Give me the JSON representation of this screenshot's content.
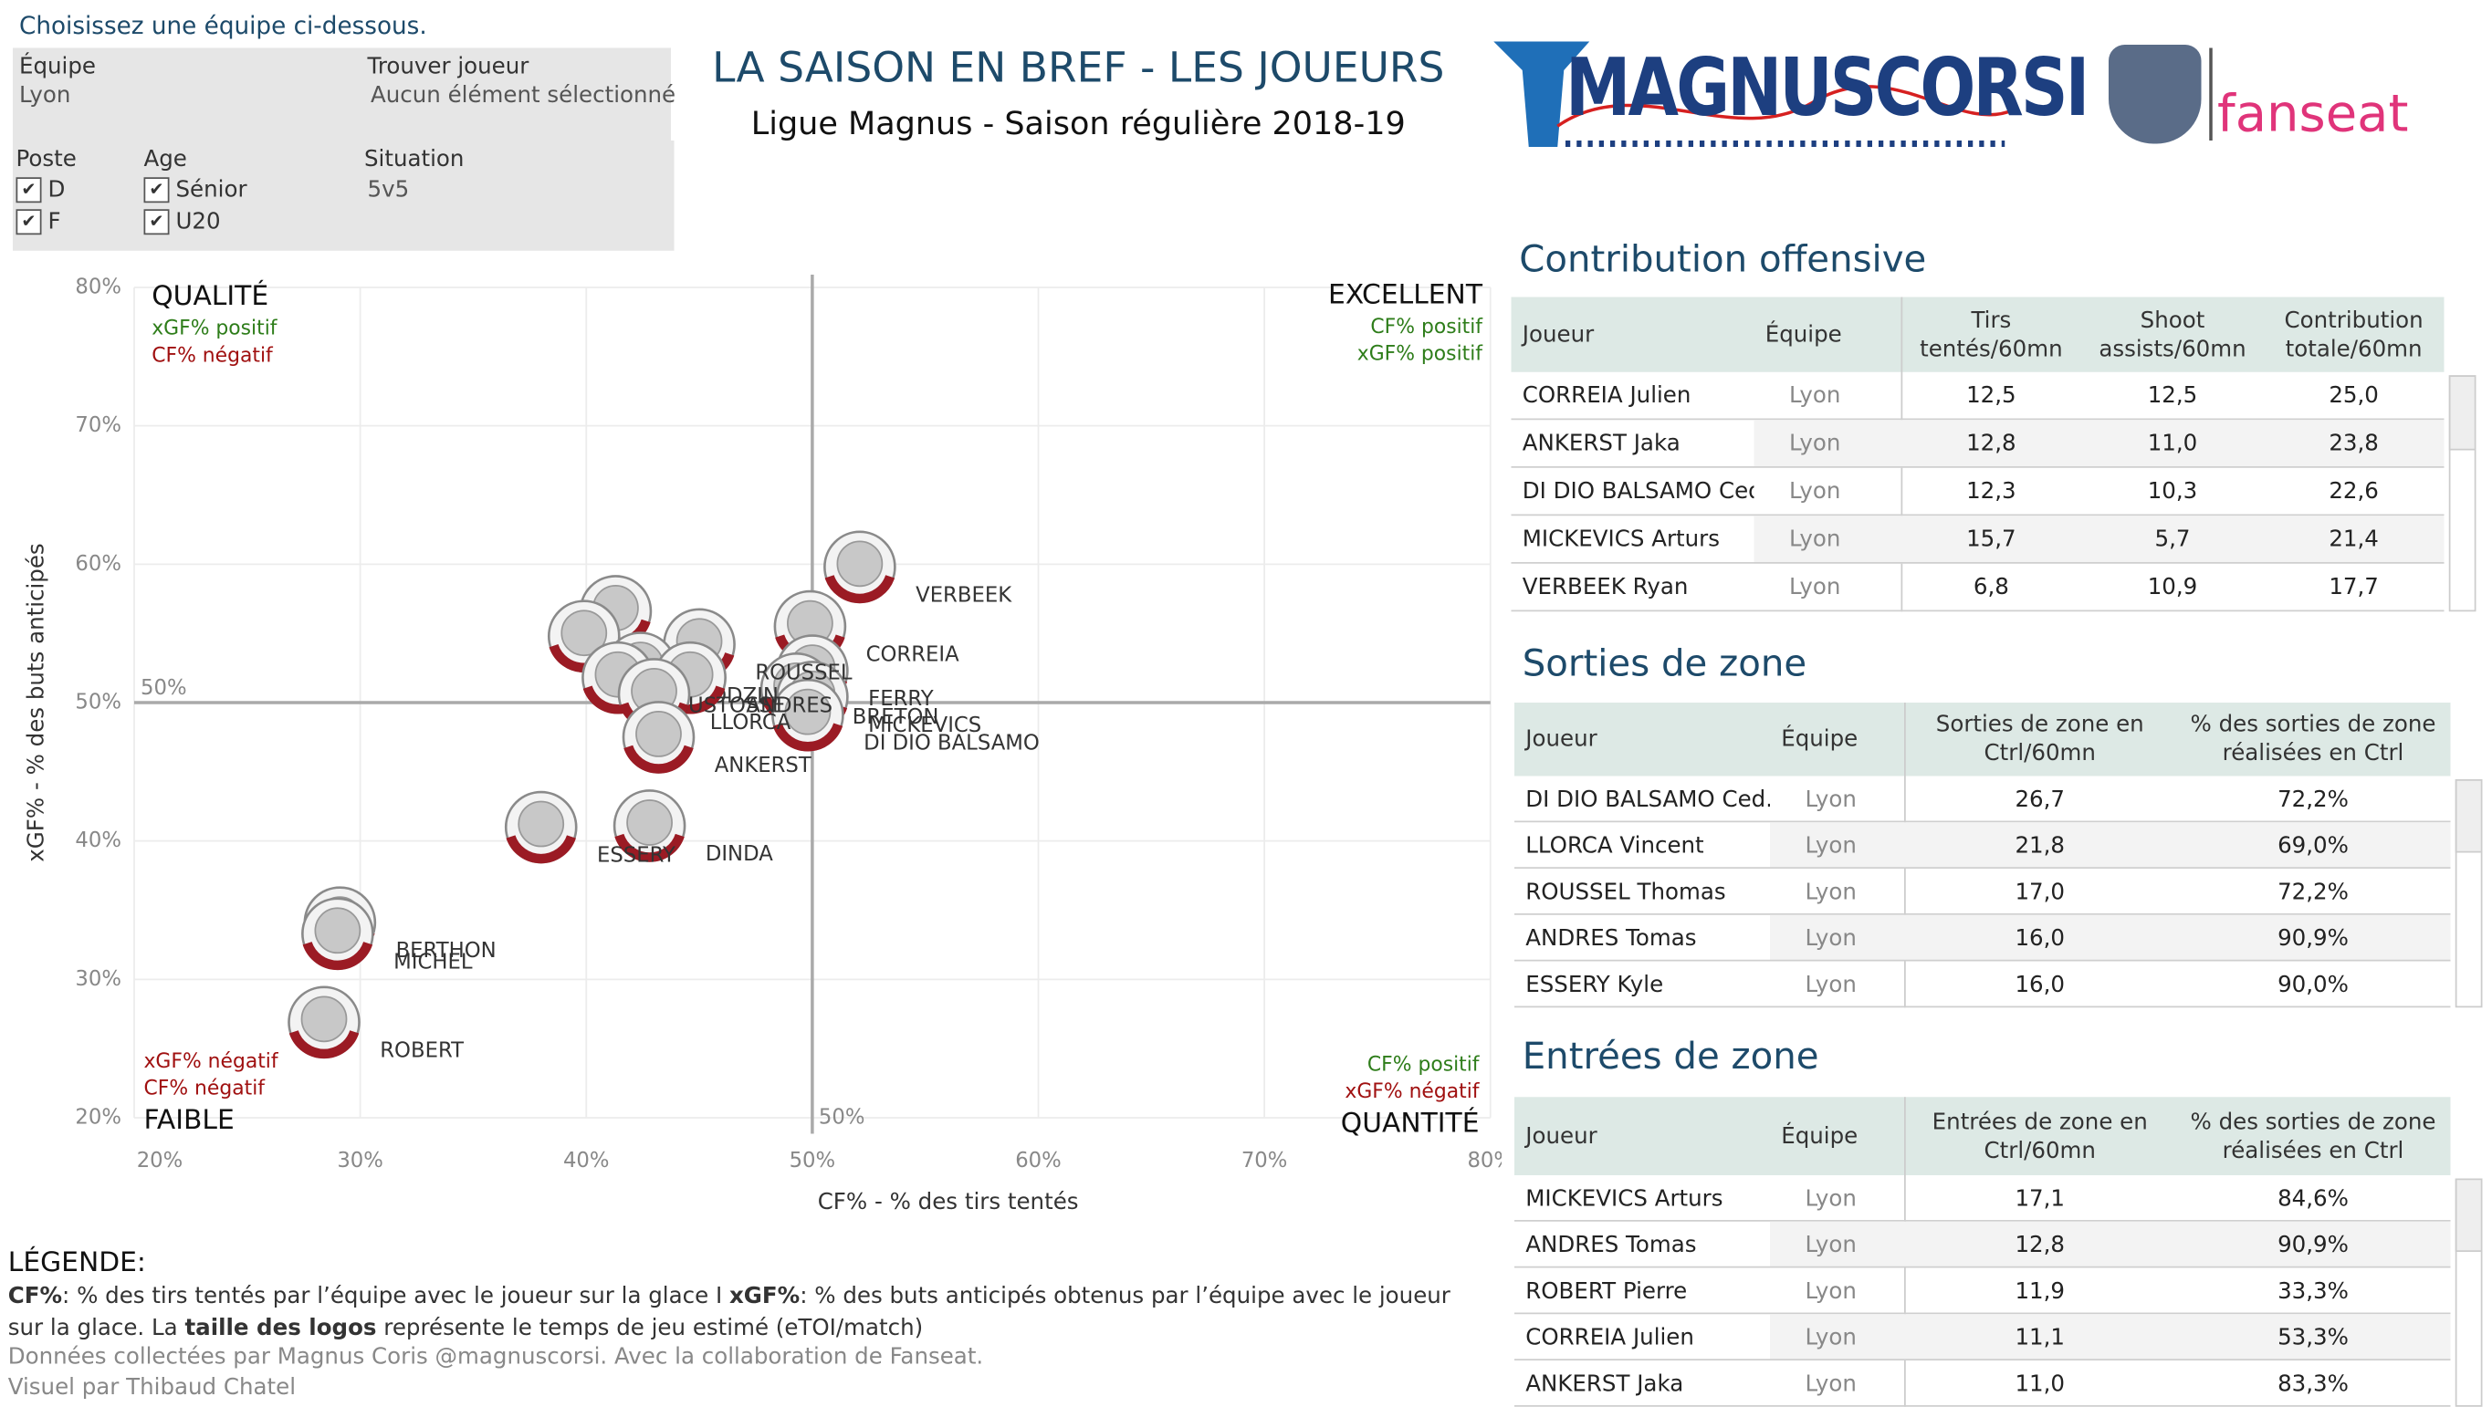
{
  "filters": {
    "prompt": "Choisissez une équipe ci-dessous.",
    "team_label": "Équipe",
    "team": "Lyon",
    "find_label": "Trouver joueur",
    "find_value": "Aucun élément sélectionné",
    "position_label": "Poste",
    "positions": [
      "D",
      "F"
    ],
    "age_label": "Age",
    "ages": [
      "Sénior",
      "U20"
    ],
    "situation_label": "Situation",
    "situation": "5v5"
  },
  "header": {
    "title": "LA SAISON EN BREF - LES JOUEURS",
    "subtitle": "Ligue Magnus - Saison régulière 2018-19",
    "logos": [
      "MAGNUSCORSI",
      "fanseat"
    ]
  },
  "chart_data": {
    "type": "scatter",
    "x_label": "CF% - % des tirs tentés",
    "y_label": "xGF% - % des buts anticipés",
    "xlim": [
      20,
      80
    ],
    "ylim": [
      20,
      80
    ],
    "xticks": [
      {
        "value": 20,
        "label": "20%"
      },
      {
        "value": 30,
        "label": "30%"
      },
      {
        "value": 40,
        "label": "40%"
      },
      {
        "value": 50,
        "label": "50%"
      },
      {
        "value": 60,
        "label": "60%"
      },
      {
        "value": 70,
        "label": "70%"
      },
      {
        "value": 80,
        "label": "80%"
      }
    ],
    "yticks": [
      {
        "value": 20,
        "label": "20%"
      },
      {
        "value": 30,
        "label": "30%"
      },
      {
        "value": 40,
        "label": "40%"
      },
      {
        "value": 50,
        "label": "50%"
      },
      {
        "value": 60,
        "label": "60%"
      },
      {
        "value": 70,
        "label": "70%"
      },
      {
        "value": 80,
        "label": "80%"
      }
    ],
    "grid": true,
    "color": "#9b1b24",
    "categories": [
      null,
      null,
      "VERBEEK",
      "CORREIA",
      "FERRY",
      "BRETON",
      "MICKEVICS",
      "DI DIO BALSAMO",
      "ROUSSEL",
      "BODZIN",
      "ANDRES",
      "CUSTOSSE",
      "LLORCA",
      "ANKERST",
      "DINDA",
      "ESSERY",
      "BERTHON",
      "MICHEL",
      "ROBERT"
    ],
    "x": [
      41.3,
      39.9,
      52.1,
      49.9,
      50.0,
      49.3,
      50.0,
      49.8,
      45.0,
      42.4,
      44.6,
      41.4,
      43.0,
      43.2,
      42.8,
      38.0,
      29.1,
      29.0,
      28.4
    ],
    "values": [
      56.6,
      54.8,
      59.8,
      55.5,
      52.3,
      51.0,
      50.4,
      49.1,
      54.2,
      52.5,
      51.8,
      51.8,
      50.6,
      47.5,
      41.1,
      41.0,
      34.1,
      33.3,
      26.9
    ],
    "reference_lines": [
      {
        "axis": "x",
        "value": 50,
        "label": "50%"
      },
      {
        "axis": "y",
        "value": 50,
        "label": "50%"
      }
    ],
    "quadrants": [
      {
        "corner": "top-left",
        "title": "QUALITÉ",
        "notes": [
          {
            "text": "xGF% positif",
            "color": "#2e7d1a"
          },
          {
            "text": "CF% négatif",
            "color": "#a01010"
          }
        ]
      },
      {
        "corner": "top-right",
        "title": "EXCELLENT",
        "notes": [
          {
            "text": "CF% positif",
            "color": "#2e7d1a"
          },
          {
            "text": "xGF% positif",
            "color": "#2e7d1a"
          }
        ]
      },
      {
        "corner": "bottom-left",
        "title": "FAIBLE",
        "notes": [
          {
            "text": "xGF% négatif",
            "color": "#a01010"
          },
          {
            "text": "CF% négatif",
            "color": "#a01010"
          }
        ]
      },
      {
        "corner": "bottom-right",
        "title": "QUANTITÉ",
        "notes": [
          {
            "text": "CF% positif",
            "color": "#2e7d1a"
          },
          {
            "text": "xGF% négatif",
            "color": "#a01010"
          }
        ]
      }
    ]
  },
  "tables": [
    {
      "title": "Contribution offensive",
      "columns": [
        "Joueur",
        "Équipe",
        "Tirs tentés/60mn",
        "Shoot assists/60mn",
        "Contribution totale/60mn"
      ],
      "rows": [
        [
          "CORREIA Julien",
          "Lyon",
          "12,5",
          "12,5",
          "25,0"
        ],
        [
          "ANKERST Jaka",
          "Lyon",
          "12,8",
          "11,0",
          "23,8"
        ],
        [
          "DI DIO BALSAMO Ced..",
          "Lyon",
          "12,3",
          "10,3",
          "22,6"
        ],
        [
          "MICKEVICS Arturs",
          "Lyon",
          "15,7",
          "5,7",
          "21,4"
        ],
        [
          "VERBEEK Ryan",
          "Lyon",
          "6,8",
          "10,9",
          "17,7"
        ]
      ]
    },
    {
      "title": "Sorties de zone",
      "columns": [
        "Joueur",
        "Équipe",
        "Sorties de zone en Ctrl/60mn",
        "% des sorties de zone réalisées en Ctrl"
      ],
      "rows": [
        [
          "DI DIO BALSAMO Ced..",
          "Lyon",
          "26,7",
          "72,2%"
        ],
        [
          "LLORCA Vincent",
          "Lyon",
          "21,8",
          "69,0%"
        ],
        [
          "ROUSSEL Thomas",
          "Lyon",
          "17,0",
          "72,2%"
        ],
        [
          "ANDRES Tomas",
          "Lyon",
          "16,0",
          "90,9%"
        ],
        [
          "ESSERY Kyle",
          "Lyon",
          "16,0",
          "90,0%"
        ]
      ]
    },
    {
      "title": "Entrées de zone",
      "columns": [
        "Joueur",
        "Équipe",
        "Entrées de zone en Ctrl/60mn",
        "% des sorties de zone réalisées en Ctrl"
      ],
      "rows": [
        [
          "MICKEVICS Arturs",
          "Lyon",
          "17,1",
          "84,6%"
        ],
        [
          "ANDRES Tomas",
          "Lyon",
          "12,8",
          "90,9%"
        ],
        [
          "ROBERT Pierre",
          "Lyon",
          "11,9",
          "33,3%"
        ],
        [
          "CORREIA Julien",
          "Lyon",
          "11,1",
          "53,3%"
        ],
        [
          "ANKERST Jaka",
          "Lyon",
          "11,0",
          "83,3%"
        ]
      ]
    }
  ],
  "legend": {
    "title": "LÉGENDE:",
    "parts": [
      "CF%",
      ": % des tirs tentés par l’équipe avec le joueur sur la glace I  ",
      "xGF%",
      ": % des buts anticipés obtenus par l’équipe avec le joueur sur la glace. La ",
      "taille des logos",
      " représente le temps de jeu estimé (eTOI/match)"
    ]
  },
  "credits": [
    "Données collectées par Magnus Coris @magnuscorsi. Avec la collaboration de Fanseat.",
    "Visuel par Thibaud Chatel"
  ]
}
